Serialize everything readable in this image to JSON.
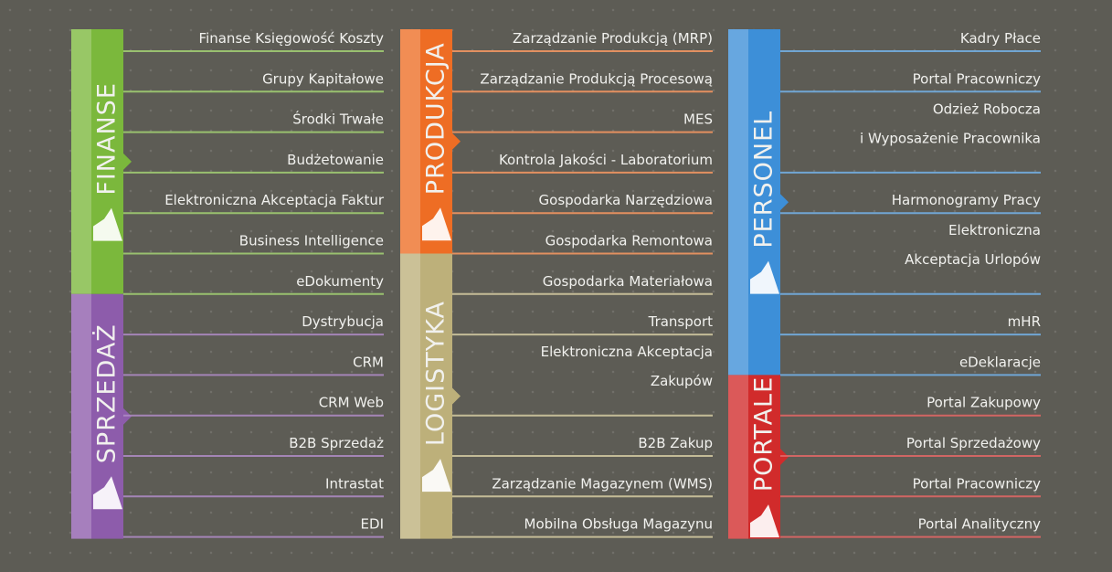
{
  "columns": [
    {
      "groups": [
        {
          "title": "FINANSE",
          "color": "#7bb83c",
          "items": [
            "Finanse Księgowość Koszty",
            "Grupy Kapitałowe",
            "Środki Trwałe",
            "Budżetowanie",
            "Elektroniczna Akceptacja Faktur",
            "Business Intelligence",
            "eDokumenty"
          ]
        },
        {
          "title": "SPRZEDAŻ",
          "color": "#8d5cab",
          "items": [
            "Dystrybucja",
            "CRM",
            "CRM Web",
            "B2B Sprzedaż",
            "Intrastat",
            "EDI"
          ]
        }
      ]
    },
    {
      "groups": [
        {
          "title": "PRODUKCJA",
          "color": "#ee6d24",
          "items": [
            "Zarządzanie Produkcją (MRP)",
            "Zarządzanie Produkcją Procesową",
            "MES",
            "Kontrola Jakości - Laboratorium",
            "Gospodarka Narzędziowa",
            "Gospodarka Remontowa"
          ]
        },
        {
          "title": "LOGISTYKA",
          "color": "#bdb07a",
          "items": [
            "Gospodarka Materiałowa",
            "Transport",
            [
              "Elektroniczna Akceptacja",
              "Zakupów"
            ],
            "B2B Zakup",
            "Zarządzanie Magazynem (WMS)",
            "Mobilna Obsługa Magazynu"
          ]
        }
      ]
    },
    {
      "groups": [
        {
          "title": "PERSONEL",
          "color": "#3d8fd8",
          "items": [
            "Kadry Płace",
            "Portal Pracowniczy",
            [
              "Odzież Robocza",
              "i Wyposażenie Pracownika"
            ],
            "Harmonogramy Pracy",
            [
              "Elektroniczna",
              "Akceptacja Urlopów"
            ],
            "mHR",
            "eDeklaracje"
          ]
        },
        {
          "title": "PORTALE",
          "color": "#d12b2b",
          "items": [
            "Portal Zakupowy",
            "Portal Sprzedażowy",
            "Portal Pracowniczy",
            "Portal Analityczny"
          ]
        }
      ]
    }
  ]
}
